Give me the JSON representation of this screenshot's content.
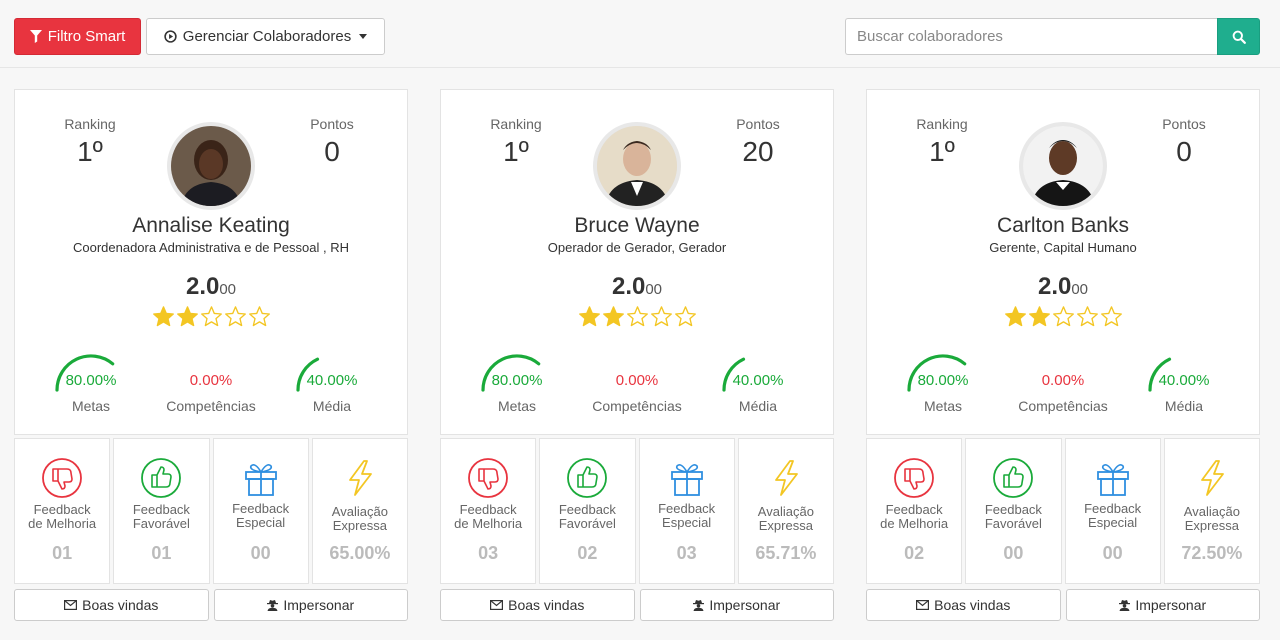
{
  "toolbar": {
    "filter_label": "Filtro Smart",
    "manage_label": "Gerenciar Colaboradores",
    "search_placeholder": "Buscar colaboradores",
    "icons": {
      "filter": "filter-icon",
      "manage": "play-circle-icon",
      "search": "search-icon"
    }
  },
  "labels": {
    "ranking": "Ranking",
    "points": "Pontos",
    "goals": "Metas",
    "competencies": "Competências",
    "average": "Média",
    "feedback_improvement": "Feedback\nde Melhoria",
    "feedback_favorable": "Feedback\nFavorável",
    "feedback_special": "Feedback\nEspecial",
    "express_eval": "Avaliação\nExpressa",
    "welcome": "Boas vindas",
    "impersonate": "Impersonar"
  },
  "colors": {
    "red": "#e8343f",
    "green": "#1aaa3a",
    "teal": "#1fae8e",
    "blue": "#2f8fe0",
    "gold": "#f3c623"
  },
  "collaborators": [
    {
      "name": "Annalise Keating",
      "role": "Coordenadora Administrativa e de Pessoal , RH",
      "ranking": "1º",
      "points": "0",
      "score_int": "2.0",
      "score_dec": "00",
      "rating": 2,
      "goals_pct": "80.00%",
      "goals_value": 0.8,
      "competencies_pct": "0.00%",
      "competencies_value": 0,
      "average_pct": "40.00%",
      "average_value": 0.4,
      "feedback_improvement": "01",
      "feedback_favorable": "01",
      "feedback_special": "00",
      "express_eval": "65.00%"
    },
    {
      "name": "Bruce Wayne",
      "role": "Operador de Gerador, Gerador",
      "ranking": "1º",
      "points": "20",
      "score_int": "2.0",
      "score_dec": "00",
      "rating": 2,
      "goals_pct": "80.00%",
      "goals_value": 0.8,
      "competencies_pct": "0.00%",
      "competencies_value": 0,
      "average_pct": "40.00%",
      "average_value": 0.4,
      "feedback_improvement": "03",
      "feedback_favorable": "02",
      "feedback_special": "03",
      "express_eval": "65.71%"
    },
    {
      "name": "Carlton Banks",
      "role": "Gerente, Capital Humano",
      "ranking": "1º",
      "points": "0",
      "score_int": "2.0",
      "score_dec": "00",
      "rating": 2,
      "goals_pct": "80.00%",
      "goals_value": 0.8,
      "competencies_pct": "0.00%",
      "competencies_value": 0,
      "average_pct": "40.00%",
      "average_value": 0.4,
      "feedback_improvement": "02",
      "feedback_favorable": "00",
      "feedback_special": "00",
      "express_eval": "72.50%"
    }
  ]
}
